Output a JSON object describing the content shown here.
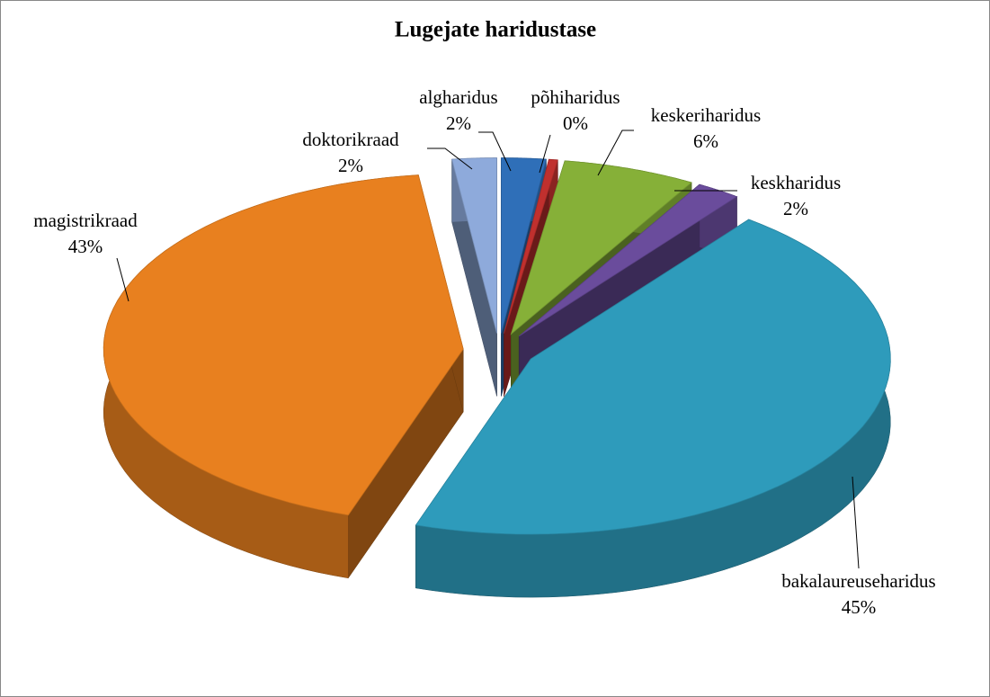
{
  "chart_data": {
    "type": "pie",
    "title": "Lugejate haridustase",
    "categories": [
      "algharidus",
      "põhiharidus",
      "keskeriharidus",
      "keskharidus",
      "bakalaureuseharidus",
      "magistrikraad",
      "doktorikraad"
    ],
    "values": [
      2,
      0.4,
      6,
      2,
      45,
      43,
      2
    ],
    "value_labels": [
      "2%",
      "0%",
      "6%",
      "2%",
      "45%",
      "43%",
      "2%"
    ],
    "colors": [
      "#2f6fb8",
      "#c0302e",
      "#86b038",
      "#6a4c9c",
      "#2e9bbb",
      "#e8801f",
      "#8eaadb"
    ]
  }
}
